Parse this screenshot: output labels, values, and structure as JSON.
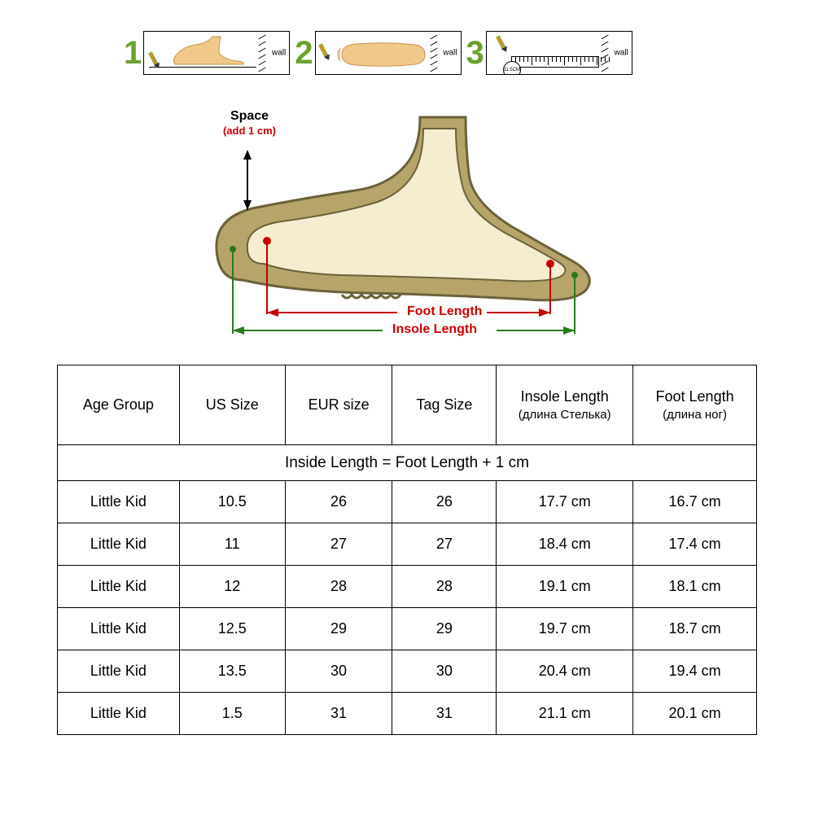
{
  "colors": {
    "step_number": "#6aa22d",
    "foot_fill": "#f0c98a",
    "foot_stroke": "#c79250",
    "shoe_sole": "#b7a46a",
    "shoe_sole_stroke": "#6b623a",
    "accent_red": "#c40000",
    "accent_green": "#2a7a1e",
    "pencil": "#e08a2e",
    "border": "#000000",
    "bg": "#ffffff"
  },
  "steps": {
    "numbers": [
      "1",
      "2",
      "3"
    ],
    "wall_label": "wall",
    "ruler_knob": "11.5CM"
  },
  "shoe_diagram": {
    "space_label": "Space",
    "space_note": "(add 1 cm)",
    "foot_length_label": "Foot Length",
    "insole_length_label": "Insole Length"
  },
  "table": {
    "caption": "Inside Length = Foot Length + 1 cm",
    "columns": [
      {
        "label": "Age Group"
      },
      {
        "label": "US Size"
      },
      {
        "label": "EUR size"
      },
      {
        "label": "Tag Size"
      },
      {
        "label": "Insole Length",
        "sub": "(длина Стелька)"
      },
      {
        "label": "Foot Length",
        "sub": "(длина ног)"
      }
    ],
    "rows": [
      [
        "Little Kid",
        "10.5",
        "26",
        "26",
        "17.7 cm",
        "16.7 cm"
      ],
      [
        "Little Kid",
        "11",
        "27",
        "27",
        "18.4 cm",
        "17.4 cm"
      ],
      [
        "Little Kid",
        "12",
        "28",
        "28",
        "19.1 cm",
        "18.1 cm"
      ],
      [
        "Little Kid",
        "12.5",
        "29",
        "29",
        "19.7 cm",
        "18.7 cm"
      ],
      [
        "Little Kid",
        "13.5",
        "30",
        "30",
        "20.4 cm",
        "19.4 cm"
      ],
      [
        "Little Kid",
        "1.5",
        "31",
        "31",
        "21.1 cm",
        "20.1 cm"
      ]
    ]
  }
}
